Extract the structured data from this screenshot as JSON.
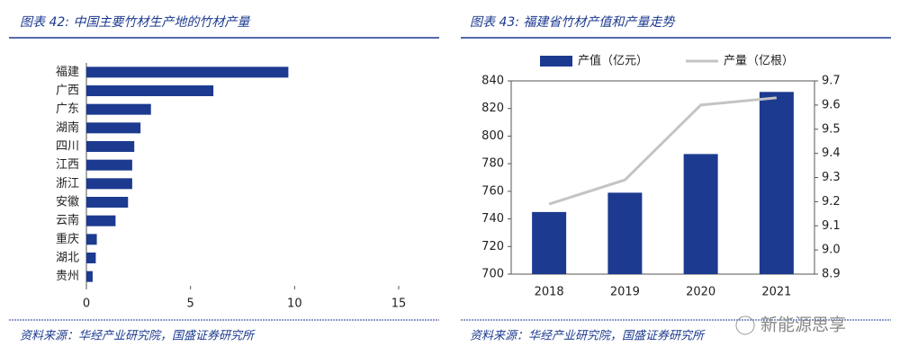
{
  "chart_data": [
    {
      "type": "hbar",
      "title": "图表 42: 中国主要竹材生产地的竹材产量",
      "categories": [
        "福建",
        "广西",
        "广东",
        "湖南",
        "四川",
        "江西",
        "浙江",
        "安徽",
        "云南",
        "重庆",
        "湖北",
        "贵州"
      ],
      "values": [
        9.7,
        6.1,
        3.1,
        2.6,
        2.3,
        2.2,
        2.2,
        2.0,
        1.4,
        0.5,
        0.45,
        0.3
      ],
      "color": "#1c3a8f",
      "xlim": [
        0,
        15
      ],
      "xticks": [
        0,
        5,
        10,
        15
      ],
      "source": "资料来源：华经产业研究院，国盛证券研究所"
    },
    {
      "type": "combo",
      "title": "图表 43: 福建省竹材产值和产量走势",
      "categories": [
        "2018",
        "2019",
        "2020",
        "2021"
      ],
      "series": [
        {
          "name": "产值（亿元）",
          "color": "#1c3a8f",
          "type": "bar",
          "values": [
            745,
            759,
            787,
            832
          ]
        },
        {
          "name": "产量（亿根）",
          "color": "#c4c4c4",
          "type": "line",
          "axis": "y2",
          "values": [
            9.19,
            9.29,
            9.6,
            9.63
          ]
        }
      ],
      "ylim": [
        700,
        840
      ],
      "yticks": [
        700,
        720,
        740,
        760,
        780,
        800,
        820,
        840
      ],
      "y2lim": [
        8.9,
        9.7
      ],
      "y2ticks": [
        8.9,
        {
          "value": 9.0,
          "label": "9.0"
        },
        9.1,
        9.2,
        9.3,
        9.4,
        9.5,
        9.6,
        9.7
      ],
      "source": "资料来源：华经产业研究院，国盛证券研究所"
    }
  ],
  "watermark": "新能源思享"
}
